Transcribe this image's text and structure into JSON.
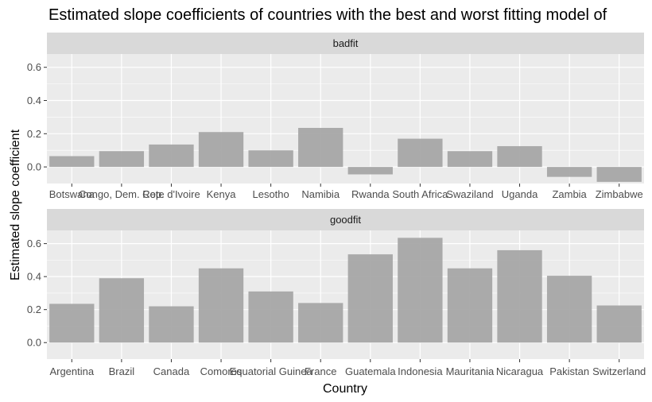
{
  "title": "Estimated slope coefficients of countries with the best and worst fitting model of",
  "xlabel": "Country",
  "ylabel": "Estimated slope coefficient",
  "colors": {
    "panel_bg": "#ebebeb",
    "strip_bg": "#d9d9d9",
    "bar": "#a6a6a6",
    "grid": "#ffffff"
  },
  "chart_data": {
    "type": "bar",
    "facet_by": "fit",
    "ylim": [
      -0.1,
      0.68
    ],
    "yticks": [
      0.0,
      0.2,
      0.4,
      0.6
    ],
    "ytick_labels": [
      "0.0",
      "0.2",
      "0.4",
      "0.6"
    ],
    "grid": true,
    "panels": [
      {
        "strip": "badfit",
        "categories": [
          "Botswana",
          "Congo, Dem. Rep.",
          "Cote d'Ivoire",
          "Kenya",
          "Lesotho",
          "Namibia",
          "Rwanda",
          "South Africa",
          "Swaziland",
          "Uganda",
          "Zambia",
          "Zimbabwe"
        ],
        "values": [
          0.065,
          0.095,
          0.135,
          0.21,
          0.1,
          0.235,
          -0.045,
          0.17,
          0.095,
          0.125,
          -0.06,
          -0.09
        ]
      },
      {
        "strip": "goodfit",
        "categories": [
          "Argentina",
          "Brazil",
          "Canada",
          "Comoros",
          "Equatorial Guinea",
          "France",
          "Guatemala",
          "Indonesia",
          "Mauritania",
          "Nicaragua",
          "Pakistan",
          "Switzerland"
        ],
        "values": [
          0.235,
          0.39,
          0.22,
          0.45,
          0.31,
          0.24,
          0.535,
          0.635,
          0.45,
          0.56,
          0.405,
          0.225
        ]
      }
    ]
  }
}
